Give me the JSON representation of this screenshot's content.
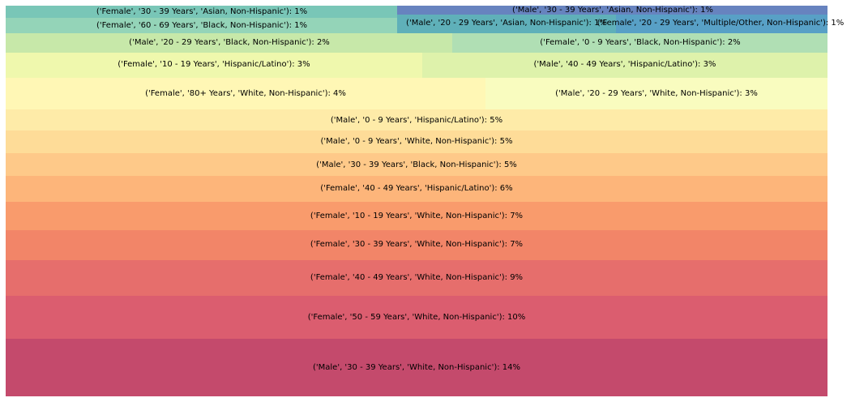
{
  "chart_data": {
    "type": "treemap",
    "title": "",
    "value_format": "percent_rounded",
    "cells": [
      {
        "label": "('Male', '30 - 39 Years', 'White, Non-Hispanic'): 14%",
        "value": 14,
        "color": "#c44a6c"
      },
      {
        "label": "('Female', '50 - 59 Years', 'White, Non-Hispanic'): 10%",
        "value": 10,
        "color": "#db5d6f"
      },
      {
        "label": "('Female', '40 - 49 Years', 'White, Non-Hispanic'): 9%",
        "value": 9,
        "color": "#e66e6c"
      },
      {
        "label": "('Female', '30 - 39 Years', 'White, Non-Hispanic'): 7%",
        "value": 7,
        "color": "#f28568"
      },
      {
        "label": "('Female', '10 - 19 Years', 'White, Non-Hispanic'): 7%",
        "value": 7,
        "color": "#f99b6c"
      },
      {
        "label": "('Female', '40 - 49 Years', 'Hispanic/Latino'): 6%",
        "value": 6,
        "color": "#fdb57a"
      },
      {
        "label": "('Male', '30 - 39 Years', 'Black, Non-Hispanic'): 5%",
        "value": 5,
        "color": "#fec989"
      },
      {
        "label": "('Male', '0 - 9 Years', 'White, Non-Hispanic'): 5%",
        "value": 5,
        "color": "#fedc98"
      },
      {
        "label": "('Male', '0 - 9 Years', 'Hispanic/Latino'): 5%",
        "value": 5,
        "color": "#feeba8"
      },
      {
        "label": "('Female', '80+ Years', 'White, Non-Hispanic'): 4%",
        "value": 4,
        "color": "#fff7b5"
      },
      {
        "label": "('Male', '20 - 29 Years', 'White, Non-Hispanic'): 3%",
        "value": 3,
        "color": "#f9fcbf"
      },
      {
        "label": "('Female', '10 - 19 Years', 'Hispanic/Latino'): 3%",
        "value": 3,
        "color": "#eff8ad"
      },
      {
        "label": "('Male', '40 - 49 Years', 'Hispanic/Latino'): 3%",
        "value": 3,
        "color": "#def2ab"
      },
      {
        "label": "('Male', '20 - 29 Years', 'Black, Non-Hispanic'): 2%",
        "value": 2,
        "color": "#c7e8a9"
      },
      {
        "label": "('Female', '0 - 9 Years', 'Black, Non-Hispanic'): 2%",
        "value": 2,
        "color": "#b0dfb4"
      },
      {
        "label": "('Female', '60 - 69 Years', 'Black, Non-Hispanic'): 1%",
        "value": 1,
        "color": "#94d4b8"
      },
      {
        "label": "('Female', '30 - 39 Years', 'Asian, Non-Hispanic'): 1%",
        "value": 1,
        "color": "#79c6b7"
      },
      {
        "label": "('Male', '20 - 29 Years', 'Asian, Non-Hispanic'): 1%",
        "value": 1,
        "color": "#5fb0b9"
      },
      {
        "label": "('Female', '20 - 29 Years', 'Multiple/Other, Non-Hispanic'): 1%",
        "value": 1,
        "color": "#58a0c6"
      },
      {
        "label": "('Male', '30 - 39 Years', 'Asian, Non-Hispanic'): 1%",
        "value": 1,
        "color": "#6783bf"
      }
    ]
  }
}
